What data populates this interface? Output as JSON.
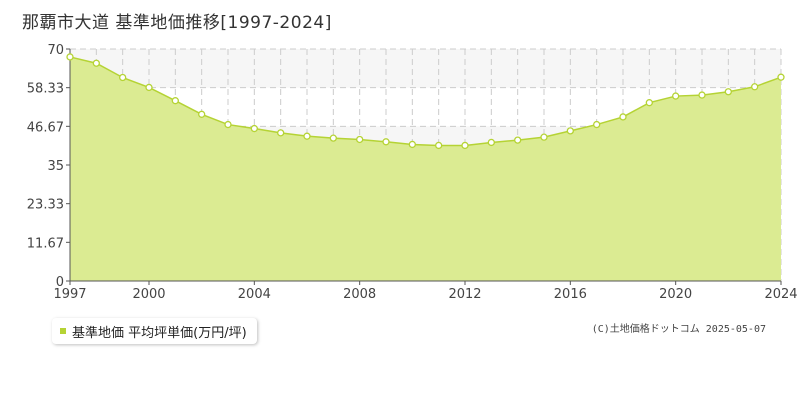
{
  "title_text": "那覇市大道 基準地価推移[1997-2024]",
  "legend_text": "基準地価 平均坪単価(万円/坪)",
  "credit_text": "(C)土地価格ドットコム 2025-05-07",
  "colors": {
    "fill": "#dbeb92",
    "line": "#b5d334",
    "marker_fill": "#ffffff",
    "grid": "#cccccc",
    "band": "#f6f6f6"
  },
  "chart_data": {
    "type": "area",
    "title": "那覇市大道 基準地価推移[1997-2024]",
    "xlabel": "",
    "ylabel": "",
    "xlim": [
      1997,
      2024
    ],
    "ylim": [
      0,
      70
    ],
    "yticks": [
      "0",
      "11.67",
      "23.33",
      "35",
      "46.67",
      "58.33",
      "70"
    ],
    "xticks": [
      "1997",
      "2000",
      "2004",
      "2008",
      "2012",
      "2016",
      "2020",
      "2024"
    ],
    "grid": true,
    "legend": "bottom-left",
    "series": [
      {
        "name": "基準地価 平均坪単価(万円/坪)",
        "x": [
          1997,
          1998,
          1999,
          2000,
          2001,
          2002,
          2003,
          2004,
          2005,
          2006,
          2007,
          2008,
          2009,
          2010,
          2011,
          2012,
          2013,
          2014,
          2015,
          2016,
          2017,
          2018,
          2019,
          2020,
          2021,
          2022,
          2023,
          2024
        ],
        "values": [
          67.6,
          65.7,
          61.4,
          58.4,
          54.4,
          50.3,
          47.2,
          46.0,
          44.7,
          43.7,
          43.1,
          42.7,
          42.0,
          41.2,
          40.9,
          40.9,
          41.8,
          42.5,
          43.4,
          45.3,
          47.2,
          49.5,
          53.8,
          55.8,
          56.1,
          57.1,
          58.6,
          61.5
        ]
      }
    ]
  }
}
